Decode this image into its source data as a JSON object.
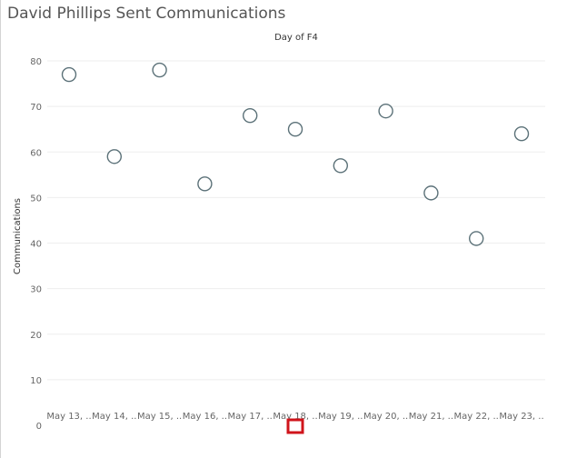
{
  "chart_data": {
    "type": "scatter",
    "title": "David Phillips Sent Communications",
    "column_header": "Day of F4",
    "ylabel": "Communications",
    "ylim": [
      0,
      80
    ],
    "yticks": [
      0,
      10,
      20,
      30,
      40,
      50,
      60,
      70,
      80
    ],
    "grid": true,
    "categories": [
      "May 13, ..",
      "May 14, ..",
      "May 15, ..",
      "May 16, ..",
      "May 17, ..",
      "May 18, ..",
      "May 19, ..",
      "May 20, ..",
      "May 21, ..",
      "May 22, ..",
      "May 23, .."
    ],
    "values": [
      77,
      59,
      78,
      53,
      68,
      65,
      57,
      69,
      51,
      41,
      64
    ],
    "selected_index": 5,
    "marker_color": "#5b7178",
    "selection_color": "#d0141b",
    "gridline_color": "#eeeeee"
  }
}
